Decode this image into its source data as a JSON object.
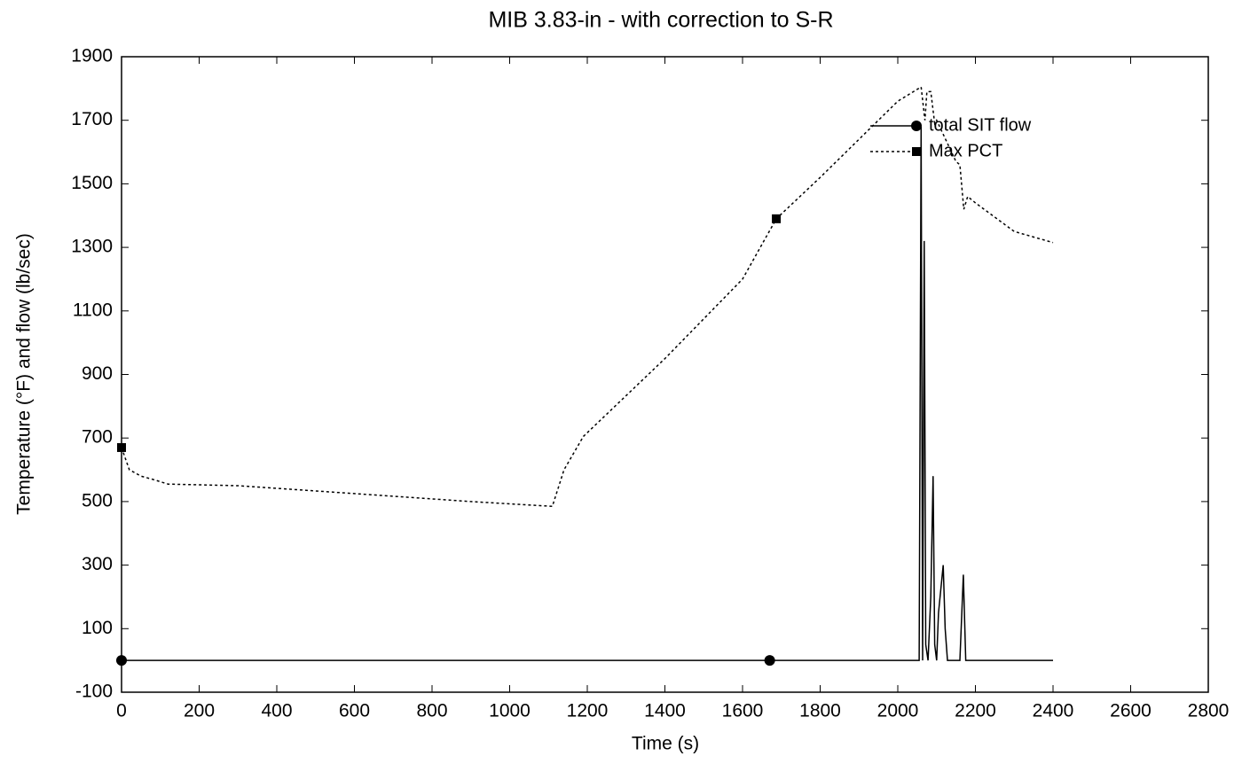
{
  "chart_data": {
    "type": "line",
    "title": "MIB 3.83-in - with correction to S-R",
    "x_label": "Time (s)",
    "y_label": "Temperature (°F) and flow (lb/sec)",
    "xlim": [
      0,
      2800
    ],
    "xticks": [
      0,
      200,
      400,
      600,
      800,
      1000,
      1200,
      1400,
      1600,
      1800,
      2000,
      2200,
      2400,
      2600,
      2800
    ],
    "ylim": [
      -100,
      1900
    ],
    "yticks": [
      -100,
      100,
      300,
      500,
      700,
      900,
      1100,
      1300,
      1500,
      1700,
      1900
    ],
    "grid": false,
    "legend": "upper right",
    "series": [
      {
        "name": "total SIT flow",
        "color": "#000000",
        "dash": "solid",
        "marker": "circle",
        "x": [
          0,
          1670,
          2055,
          2060,
          2064,
          2068,
          2072,
          2078,
          2085,
          2091,
          2095,
          2100,
          2105,
          2117,
          2122,
          2128,
          2160,
          2169,
          2175,
          2400
        ],
        "values": [
          0,
          0,
          0,
          1680,
          0,
          1320,
          50,
          0,
          200,
          580,
          50,
          0,
          150,
          300,
          100,
          0,
          0,
          270,
          0,
          0
        ]
      },
      {
        "name": "Max PCT",
        "color": "#000000",
        "dash": "dotted",
        "marker": "square",
        "x": [
          0,
          20,
          50,
          80,
          120,
          300,
          600,
          900,
          1110,
          1140,
          1190,
          1400,
          1600,
          1687,
          1800,
          2000,
          2060,
          2070,
          2075,
          2085,
          2095,
          2100,
          2150,
          2160,
          2170,
          2180,
          2200,
          2300,
          2400
        ],
        "values": [
          670,
          600,
          580,
          570,
          555,
          550,
          525,
          500,
          485,
          600,
          705,
          950,
          1200,
          1390,
          1520,
          1760,
          1805,
          1700,
          1790,
          1790,
          1690,
          1700,
          1570,
          1560,
          1420,
          1460,
          1440,
          1350,
          1315
        ]
      }
    ]
  }
}
